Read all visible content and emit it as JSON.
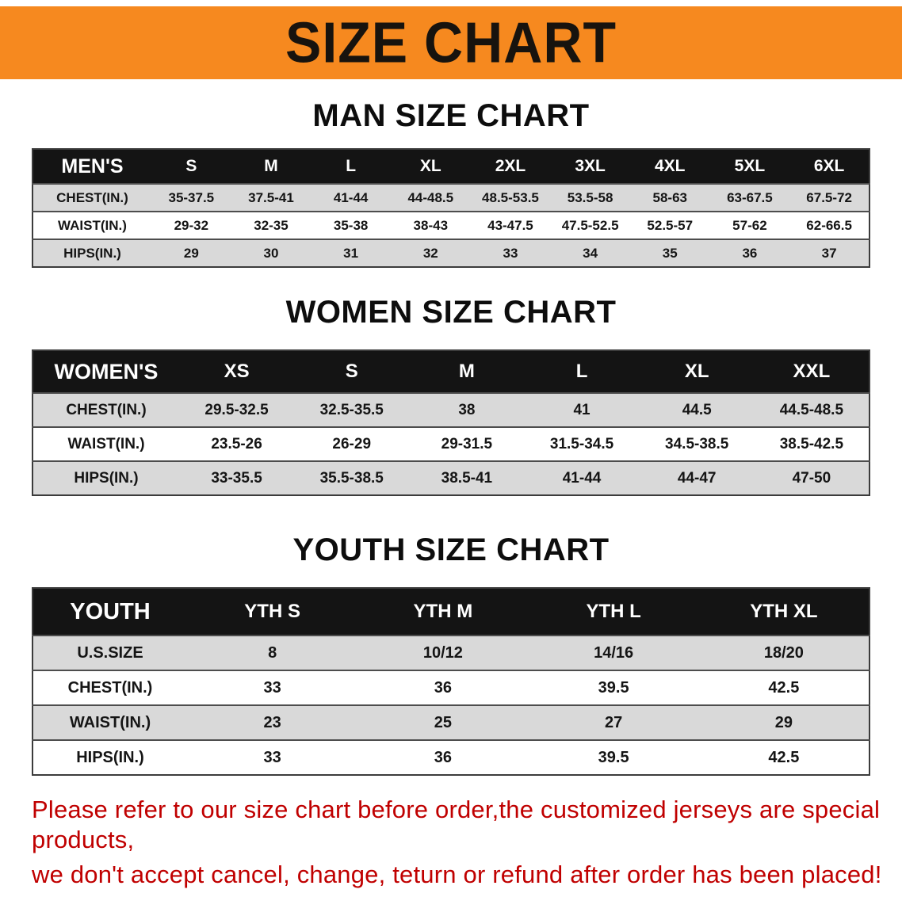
{
  "banner": {
    "title": "SIZE CHART"
  },
  "colors": {
    "banner_bg": "#f6891f",
    "header_bg": "#141414",
    "row_alt": "#d9d9d9",
    "notice_color": "#c00000"
  },
  "sections": {
    "men": {
      "heading": "MAN SIZE CHART",
      "header": [
        "MEN'S",
        "S",
        "M",
        "L",
        "XL",
        "2XL",
        "3XL",
        "4XL",
        "5XL",
        "6XL"
      ],
      "rows": [
        {
          "label": "CHEST(IN.)",
          "values": [
            "35-37.5",
            "37.5-41",
            "41-44",
            "44-48.5",
            "48.5-53.5",
            "53.5-58",
            "58-63",
            "63-67.5",
            "67.5-72"
          ]
        },
        {
          "label": "WAIST(IN.)",
          "values": [
            "29-32",
            "32-35",
            "35-38",
            "38-43",
            "43-47.5",
            "47.5-52.5",
            "52.5-57",
            "57-62",
            "62-66.5"
          ]
        },
        {
          "label": "HIPS(IN.)",
          "values": [
            "29",
            "30",
            "31",
            "32",
            "33",
            "34",
            "35",
            "36",
            "37"
          ]
        }
      ]
    },
    "women": {
      "heading": "WOMEN SIZE CHART",
      "header": [
        "WOMEN'S",
        "XS",
        "S",
        "M",
        "L",
        "XL",
        "XXL"
      ],
      "rows": [
        {
          "label": "CHEST(IN.)",
          "values": [
            "29.5-32.5",
            "32.5-35.5",
            "38",
            "41",
            "44.5",
            "44.5-48.5"
          ]
        },
        {
          "label": "WAIST(IN.)",
          "values": [
            "23.5-26",
            "26-29",
            "29-31.5",
            "31.5-34.5",
            "34.5-38.5",
            "38.5-42.5"
          ]
        },
        {
          "label": "HIPS(IN.)",
          "values": [
            "33-35.5",
            "35.5-38.5",
            "38.5-41",
            "41-44",
            "44-47",
            "47-50"
          ]
        }
      ]
    },
    "youth": {
      "heading": "YOUTH SIZE CHART",
      "header": [
        "YOUTH",
        "YTH S",
        "YTH M",
        "YTH L",
        "YTH XL"
      ],
      "rows": [
        {
          "label": "U.S.SIZE",
          "values": [
            "8",
            "10/12",
            "14/16",
            "18/20"
          ]
        },
        {
          "label": "CHEST(IN.)",
          "values": [
            "33",
            "36",
            "39.5",
            "42.5"
          ]
        },
        {
          "label": "WAIST(IN.)",
          "values": [
            "23",
            "25",
            "27",
            "29"
          ]
        },
        {
          "label": "HIPS(IN.)",
          "values": [
            "33",
            "36",
            "39.5",
            "42.5"
          ]
        }
      ]
    }
  },
  "footer": {
    "line1": "Please refer to our size chart before order,the customized jerseys are special products,",
    "line2": "we don't accept cancel, change, teturn or refund after order has been placed!"
  }
}
